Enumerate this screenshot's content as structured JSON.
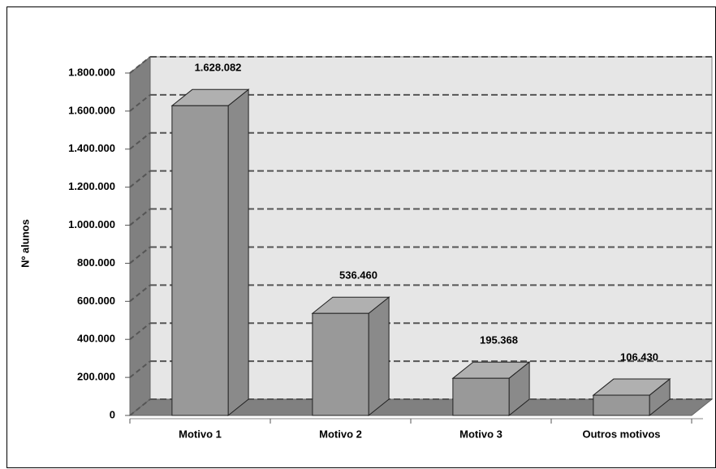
{
  "chart_data": {
    "type": "bar3d",
    "y_axis_label": "Nº alunos",
    "categories": [
      "Motivo 1",
      "Motivo 2",
      "Motivo 3",
      "Outros motivos"
    ],
    "values": [
      1628082,
      536460,
      195368,
      106430
    ],
    "value_labels": [
      "1.628.082",
      "536.460",
      "195.368",
      "106.430"
    ],
    "color": "#999999",
    "ylim": [
      0,
      1800000
    ],
    "yticks": [
      0,
      {
        "value": 200000,
        "label": "200.000"
      },
      {
        "value": 400000,
        "label": "400.000"
      },
      {
        "value": 600000,
        "label": "600.000"
      },
      {
        "value": 800000,
        "label": "800.000"
      },
      {
        "value": 1000000,
        "label": "1.000.000"
      },
      {
        "value": 1200000,
        "label": "1.200.000"
      },
      {
        "value": 1400000,
        "label": "1.400.000"
      },
      {
        "value": 1600000,
        "label": "1.600.000"
      },
      {
        "value": 1800000,
        "label": "1.800.000"
      }
    ],
    "grid": true
  }
}
